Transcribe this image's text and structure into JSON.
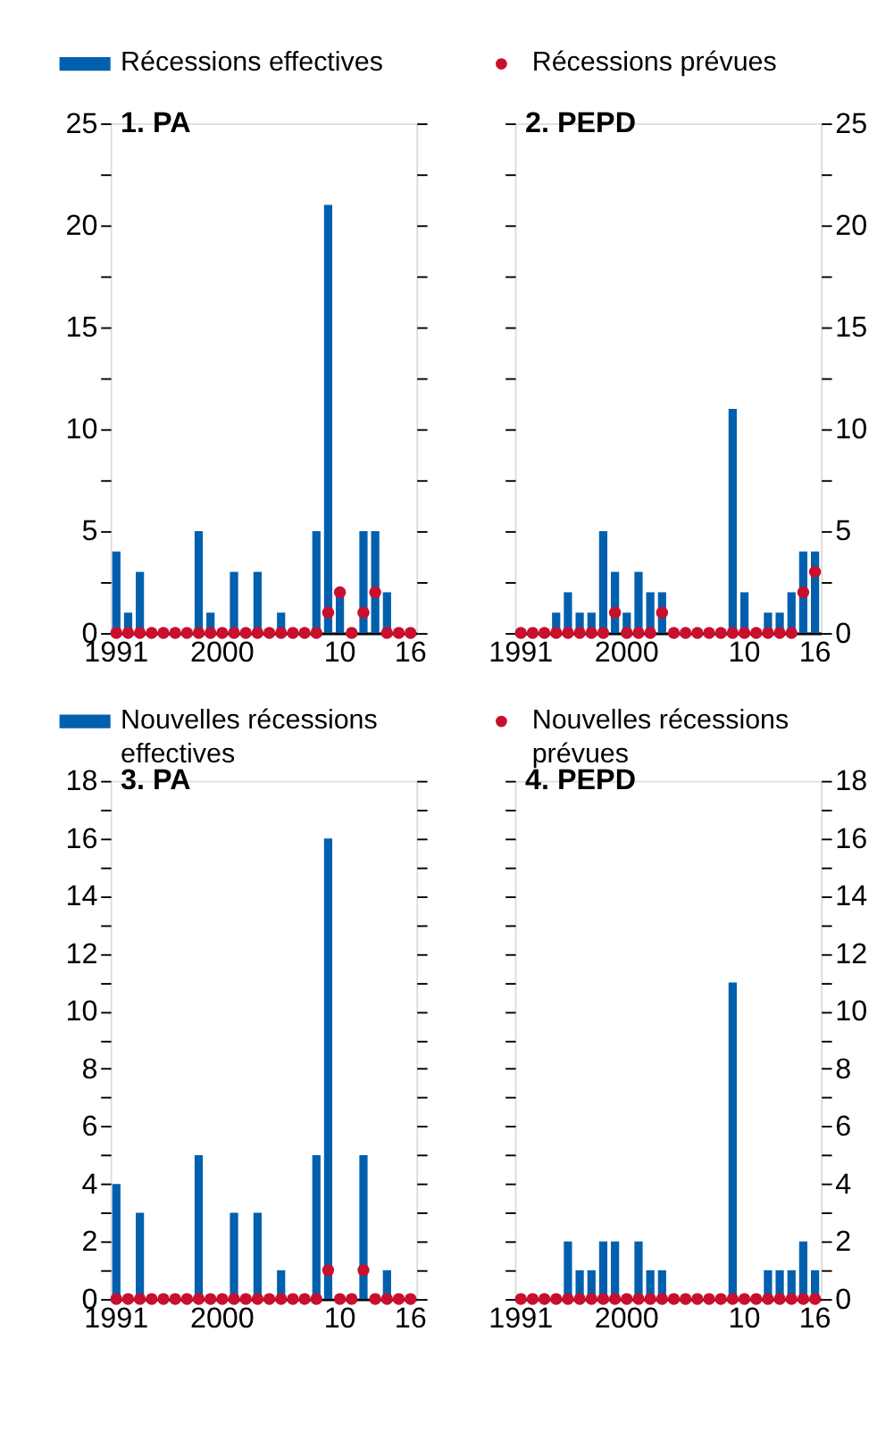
{
  "chart_data": [
    {
      "type": "bar",
      "title": "1. PA",
      "legend": "top",
      "categories": [
        "1991",
        null,
        null,
        null,
        null,
        null,
        null,
        null,
        null,
        "2000",
        null,
        null,
        null,
        null,
        null,
        null,
        null,
        null,
        null,
        "10",
        null,
        null,
        null,
        null,
        null,
        "16"
      ],
      "ylim": [
        0,
        25
      ],
      "yticks": [
        0,
        {
          "value": 2.5,
          "label": null
        },
        5,
        {
          "value": 7.5,
          "label": null
        },
        10,
        {
          "value": 12.5,
          "label": null
        },
        15,
        {
          "value": 17.5,
          "label": null
        },
        20,
        {
          "value": 22.5,
          "label": null
        },
        25
      ],
      "series": [
        {
          "name": "Récessions effectives",
          "color": "#0060ae",
          "values": [
            4,
            1,
            3,
            0,
            0,
            0,
            0,
            5,
            1,
            0,
            3,
            0,
            3,
            0,
            1,
            0,
            0,
            5,
            21,
            2,
            0,
            5,
            5,
            2,
            0,
            0
          ]
        },
        {
          "name": "Récessions prévues",
          "type": "scatter",
          "marker": "circle",
          "color": "#c8102e",
          "values": [
            0,
            0,
            0,
            0,
            0,
            0,
            0,
            0,
            0,
            0,
            0,
            0,
            0,
            0,
            0,
            0,
            0,
            0,
            1,
            2,
            0,
            1,
            2,
            0,
            0,
            0
          ]
        }
      ]
    },
    {
      "type": "bar",
      "title": "2. PEPD",
      "categories": [
        "1991",
        null,
        null,
        null,
        null,
        null,
        null,
        null,
        null,
        "2000",
        null,
        null,
        null,
        null,
        null,
        null,
        null,
        null,
        null,
        "10",
        null,
        null,
        null,
        null,
        null,
        "16"
      ],
      "ylim": [
        0,
        25
      ],
      "yticks": [
        0,
        {
          "value": 2.5,
          "label": null
        },
        5,
        {
          "value": 7.5,
          "label": null
        },
        10,
        {
          "value": 12.5,
          "label": null
        },
        15,
        {
          "value": 17.5,
          "label": null
        },
        20,
        {
          "value": 22.5,
          "label": null
        },
        25
      ],
      "series": [
        {
          "color": "#0060ae",
          "values": [
            0,
            0,
            0,
            1,
            2,
            1,
            1,
            5,
            3,
            1,
            3,
            2,
            2,
            0,
            0,
            0,
            0,
            0,
            11,
            2,
            0,
            1,
            1,
            2,
            4,
            4
          ]
        },
        {
          "type": "scatter",
          "marker": "circle",
          "color": "#c8102e",
          "values": [
            0,
            0,
            0,
            0,
            0,
            0,
            0,
            0,
            1,
            0,
            0,
            0,
            1,
            0,
            0,
            0,
            0,
            0,
            0,
            0,
            0,
            0,
            0,
            0,
            2,
            3
          ]
        }
      ]
    },
    {
      "type": "bar",
      "title": "3. PA",
      "legend": "top",
      "categories": [
        "1991",
        null,
        null,
        null,
        null,
        null,
        null,
        null,
        null,
        "2000",
        null,
        null,
        null,
        null,
        null,
        null,
        null,
        null,
        null,
        "10",
        null,
        null,
        null,
        null,
        null,
        "16"
      ],
      "ylim": [
        0,
        18
      ],
      "yticks": [
        0,
        {
          "value": 1,
          "label": null
        },
        2,
        {
          "value": 3,
          "label": null
        },
        4,
        {
          "value": 5,
          "label": null
        },
        6,
        {
          "value": 7,
          "label": null
        },
        8,
        {
          "value": 9,
          "label": null
        },
        10,
        {
          "value": 11,
          "label": null
        },
        12,
        {
          "value": 13,
          "label": null
        },
        14,
        {
          "value": 15,
          "label": null
        },
        16,
        {
          "value": 17,
          "label": null
        },
        18
      ],
      "series": [
        {
          "name": "Nouvelles récessions effectives",
          "color": "#0060ae",
          "values": [
            4,
            0,
            3,
            0,
            0,
            0,
            0,
            5,
            0,
            0,
            3,
            0,
            3,
            0,
            1,
            0,
            0,
            5,
            16,
            0,
            0,
            5,
            0,
            1,
            0,
            0
          ]
        },
        {
          "name": "Nouvelles récessions prévues",
          "type": "scatter",
          "marker": "circle",
          "color": "#c8102e",
          "values": [
            0,
            0,
            0,
            0,
            0,
            0,
            0,
            0,
            0,
            0,
            0,
            0,
            0,
            0,
            0,
            0,
            0,
            0,
            1,
            0,
            0,
            1,
            0,
            0,
            0,
            0
          ]
        }
      ]
    },
    {
      "type": "bar",
      "title": "4. PEPD",
      "categories": [
        "1991",
        null,
        null,
        null,
        null,
        null,
        null,
        null,
        null,
        "2000",
        null,
        null,
        null,
        null,
        null,
        null,
        null,
        null,
        null,
        "10",
        null,
        null,
        null,
        null,
        null,
        "16"
      ],
      "ylim": [
        0,
        18
      ],
      "yticks": [
        0,
        {
          "value": 1,
          "label": null
        },
        2,
        {
          "value": 3,
          "label": null
        },
        4,
        {
          "value": 5,
          "label": null
        },
        6,
        {
          "value": 7,
          "label": null
        },
        8,
        {
          "value": 9,
          "label": null
        },
        10,
        {
          "value": 11,
          "label": null
        },
        12,
        {
          "value": 13,
          "label": null
        },
        14,
        {
          "value": 15,
          "label": null
        },
        16,
        {
          "value": 17,
          "label": null
        },
        18
      ],
      "series": [
        {
          "color": "#0060ae",
          "values": [
            0,
            0,
            0,
            0,
            2,
            1,
            1,
            2,
            2,
            0,
            2,
            1,
            1,
            0,
            0,
            0,
            0,
            0,
            11,
            0,
            0,
            1,
            1,
            1,
            2,
            1
          ]
        },
        {
          "type": "scatter",
          "marker": "circle",
          "color": "#c8102e",
          "values": [
            0,
            0,
            0,
            0,
            0,
            0,
            0,
            0,
            0,
            0,
            0,
            0,
            0,
            0,
            0,
            0,
            0,
            0,
            0,
            0,
            0,
            0,
            0,
            0,
            0,
            0
          ]
        }
      ]
    }
  ]
}
